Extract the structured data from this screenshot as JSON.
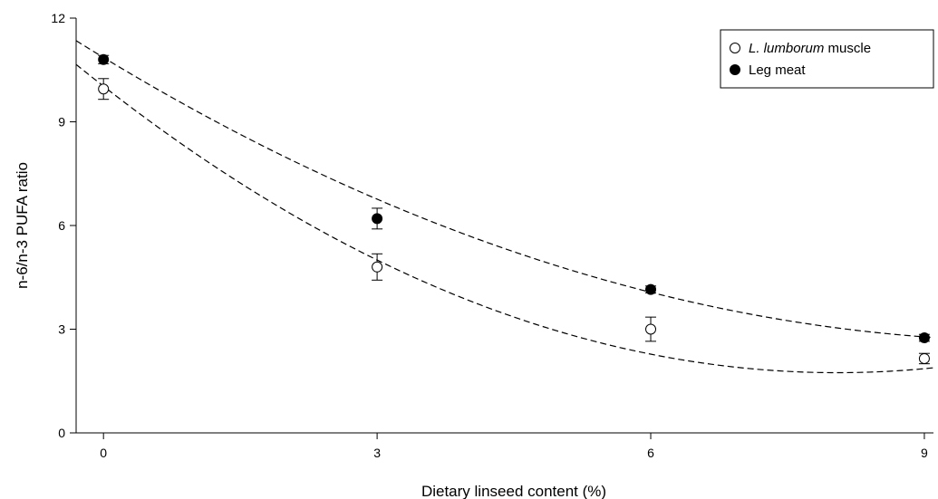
{
  "chart_data": {
    "type": "scatter",
    "title": "",
    "xlabel": "Dietary linseed content (%)",
    "ylabel": "n-6/n-3 PUFA ratio",
    "xlim": [
      -0.3,
      9.1
    ],
    "ylim": [
      0,
      12
    ],
    "x_ticks": [
      0,
      3,
      6,
      9
    ],
    "y_ticks": [
      0,
      3,
      6,
      9,
      12
    ],
    "grid": false,
    "legend_position": "top-right",
    "series": [
      {
        "name_parts": [
          "L. lumborum",
          " muscle"
        ],
        "marker": "open-circle",
        "x": [
          0,
          3,
          6,
          9
        ],
        "y": [
          9.95,
          4.8,
          3.0,
          2.15
        ],
        "error": [
          0.3,
          0.38,
          0.35,
          0.15
        ],
        "fit": {
          "type": "quadratic",
          "coefficients": [
            10.03,
            -2.06,
            0.128
          ],
          "line_style": "dashed"
        }
      },
      {
        "name_parts": [
          "Leg meat"
        ],
        "marker": "filled-circle",
        "x": [
          0,
          3,
          6,
          9
        ],
        "y": [
          10.8,
          6.2,
          4.15,
          2.75
        ],
        "error": [
          0.12,
          0.3,
          0.1,
          0.1
        ],
        "fit": {
          "type": "quadratic",
          "coefficients": [
            10.86,
            -1.6,
            0.078
          ],
          "line_style": "dashed"
        }
      }
    ],
    "colors": {
      "axis": "#000000",
      "marker_fill_open": "#ffffff",
      "marker_fill_solid": "#000000",
      "fit_line": "#000000"
    }
  }
}
